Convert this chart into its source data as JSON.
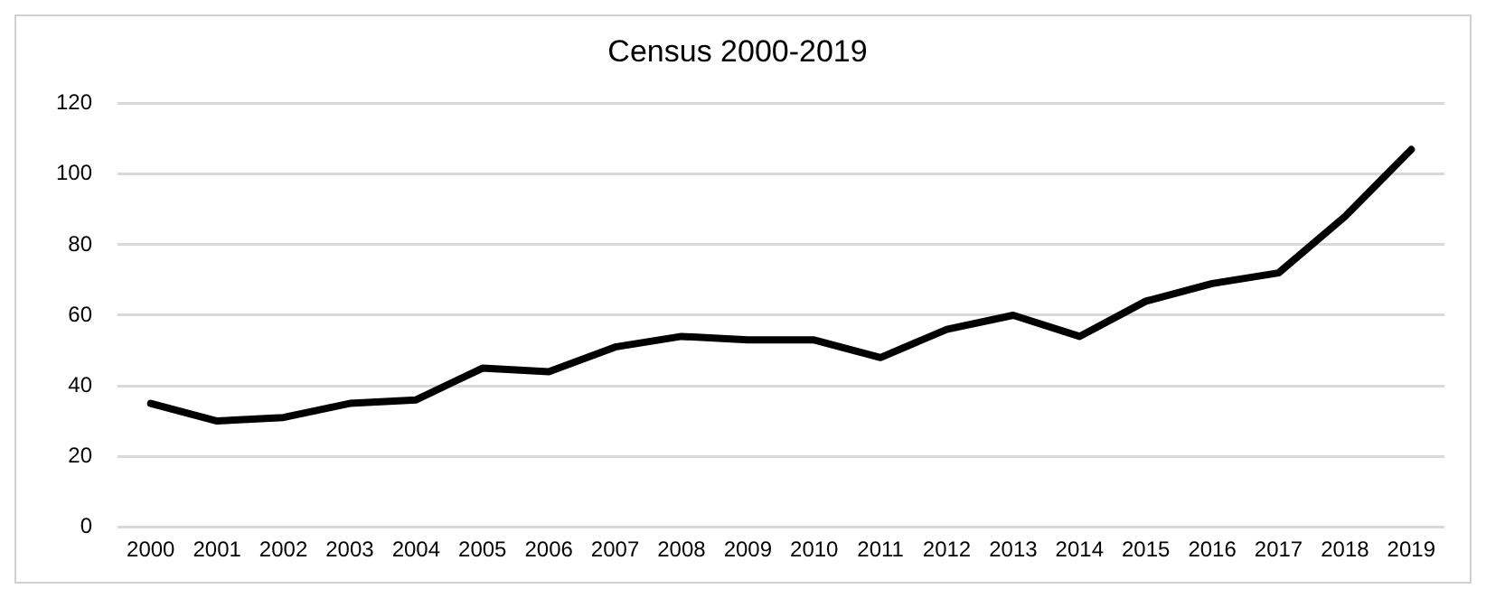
{
  "chart_data": {
    "type": "line",
    "title": "Census 2000-2019",
    "categories": [
      "2000",
      "2001",
      "2002",
      "2003",
      "2004",
      "2005",
      "2006",
      "2007",
      "2008",
      "2009",
      "2010",
      "2011",
      "2012",
      "2013",
      "2014",
      "2015",
      "2016",
      "2017",
      "2018",
      "2019"
    ],
    "series": [
      {
        "color": "#000000",
        "values": [
          35,
          30,
          31,
          35,
          36,
          45,
          44,
          51,
          54,
          53,
          53,
          48,
          56,
          60,
          54,
          64,
          69,
          72,
          88,
          107
        ]
      }
    ],
    "ylim": [
      0,
      120
    ],
    "yticks": [
      0,
      20,
      40,
      60,
      80,
      100,
      120
    ],
    "grid": "y",
    "legend": false,
    "marker": "none",
    "line_style": "solid"
  }
}
